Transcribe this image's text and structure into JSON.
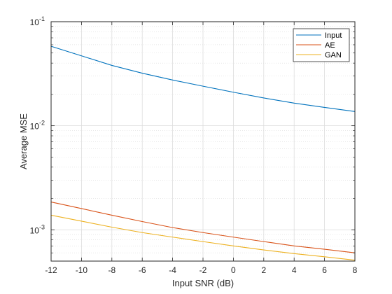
{
  "chart_data": {
    "type": "line",
    "xlabel": "Input SNR (dB)",
    "ylabel": "Average MSE",
    "xlim": [
      -12,
      8
    ],
    "ylim": [
      0.0005,
      0.1
    ],
    "yscale": "log",
    "grid": true,
    "minor_grid": true,
    "legend_position": "top-right",
    "x": [
      -12,
      -10,
      -8,
      -6,
      -4,
      -2,
      0,
      2,
      4,
      6,
      8
    ],
    "x_ticks": [
      "-12",
      "-10",
      "-8",
      "-6",
      "-4",
      "-2",
      "0",
      "2",
      "4",
      "6",
      "8"
    ],
    "y_ticks": [
      {
        "value": 0.1,
        "base": "10",
        "exp": "-1"
      },
      {
        "value": 0.01,
        "base": "10",
        "exp": "-2"
      },
      {
        "value": 0.001,
        "base": "10",
        "exp": "-3"
      }
    ],
    "series": [
      {
        "name": "Input",
        "color": "#0072BD",
        "values": [
          0.058,
          0.047,
          0.038,
          0.032,
          0.0275,
          0.024,
          0.021,
          0.0185,
          0.0165,
          0.015,
          0.0137
        ]
      },
      {
        "name": "AE",
        "color": "#D95319",
        "values": [
          0.00185,
          0.0016,
          0.00138,
          0.0012,
          0.00105,
          0.00094,
          0.00085,
          0.00077,
          0.0007,
          0.00065,
          0.0006
        ]
      },
      {
        "name": "GAN",
        "color": "#EDB120",
        "values": [
          0.00138,
          0.00121,
          0.00106,
          0.00094,
          0.00085,
          0.00077,
          0.0007,
          0.00064,
          0.00059,
          0.00055,
          0.00051
        ]
      }
    ]
  }
}
